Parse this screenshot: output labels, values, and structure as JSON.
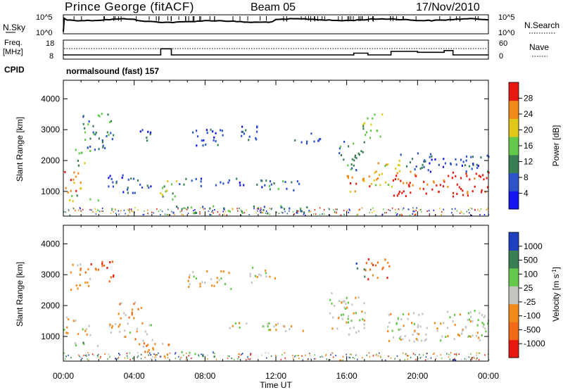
{
  "header": {
    "station": "Prince George (fitACF)",
    "beam": "Beam 05",
    "date": "17/Nov/2010"
  },
  "nsky_panel": {
    "left_label": "N.Sky",
    "right_label": "N.Search",
    "ticks_left": [
      "10^5",
      "10^0"
    ],
    "ticks_right": [
      "10^5",
      "10^0"
    ]
  },
  "freq_panel": {
    "left_label_1": "Freq.",
    "left_label_2": "[MHz]",
    "right_label": "Nave",
    "ticks_left": [
      "18",
      "8"
    ],
    "ticks_right": [
      "60",
      "0"
    ]
  },
  "cpid": {
    "label": "CPID",
    "value": "normalsound (fast) 157"
  },
  "x_axis": {
    "label": "Time UT",
    "ticks": [
      "00:00",
      "04:00",
      "08:00",
      "12:00",
      "16:00",
      "20:00",
      "00:00"
    ]
  },
  "colors": {
    "blue": "#1f3fbf",
    "darkgreen": "#3a7f54",
    "green": "#64c84a",
    "yellow": "#e0c81a",
    "orange": "#f08a18",
    "red": "#e81a10",
    "gray": "#c4c4c0"
  },
  "chart_data": [
    {
      "type": "line",
      "title": "",
      "series": [
        {
          "name": "N.Sky"
        },
        {
          "name": "N.Search"
        }
      ],
      "ylabel_left": "N.Sky",
      "ylabel_right": "N.Search",
      "note": "values near 10^5 throughout the day"
    },
    {
      "type": "line",
      "series": [
        {
          "name": "Freq.",
          "x_hours": [
            0,
            5.5,
            5.5,
            6.1,
            6.1,
            16.4,
            16.4,
            17.2,
            17.2,
            18.5,
            18.5,
            20.0,
            20.0,
            21.5,
            21.5,
            22.0,
            22.0,
            24
          ],
          "values": [
            10,
            10,
            13.5,
            13.5,
            10,
            10,
            11,
            11,
            10,
            10,
            12,
            12,
            11.5,
            11.5,
            12.5,
            12.5,
            10,
            10
          ]
        }
      ],
      "ylabel_left": "Freq. [MHz]",
      "ylabel_right": "Nave",
      "ylim_left": [
        8,
        18
      ],
      "ylim_right": [
        0,
        60
      ]
    },
    {
      "type": "heatmap",
      "quantity": "Power",
      "xlabel": "Time UT",
      "ylabel": "Slant Range [km]",
      "xlim_hours": [
        0,
        24
      ],
      "ylim_km": [
        200,
        4600
      ],
      "yticks": [
        1000,
        2000,
        3000,
        4000
      ],
      "colorbar": {
        "label": "Power [dB]",
        "ticks": [
          "4",
          "8",
          "12",
          "16",
          "20",
          "24",
          "28"
        ],
        "colors": [
          "#1414f0",
          "#2c54c8",
          "#3a7f54",
          "#64c84a",
          "#e0c81a",
          "#f08a18",
          "#e81a10"
        ]
      },
      "regions": [
        {
          "t0": 0.0,
          "t1": 1.2,
          "r0": 900,
          "r1": 1600,
          "level": 5
        },
        {
          "t0": 0.5,
          "t1": 1.5,
          "r0": 1800,
          "r1": 2400,
          "level": 3
        },
        {
          "t0": 1.0,
          "t1": 2.8,
          "r0": 2300,
          "r1": 3500,
          "level": 2
        },
        {
          "t0": 0.2,
          "t1": 2.0,
          "r0": 650,
          "r1": 850,
          "level": 3
        },
        {
          "t0": 2.5,
          "t1": 5.0,
          "r0": 900,
          "r1": 1500,
          "level": 1
        },
        {
          "t0": 4.2,
          "t1": 5.0,
          "r0": 2500,
          "r1": 3000,
          "level": 1
        },
        {
          "t0": 5.2,
          "t1": 6.5,
          "r0": 700,
          "r1": 1300,
          "level": 3
        },
        {
          "t0": 6.2,
          "t1": 7.8,
          "r0": 1100,
          "r1": 1400,
          "level": 1
        },
        {
          "t0": 7.0,
          "t1": 9.0,
          "r0": 2400,
          "r1": 3000,
          "level": 1
        },
        {
          "t0": 8.5,
          "t1": 11.5,
          "r0": 1100,
          "r1": 1400,
          "level": 1
        },
        {
          "t0": 10.0,
          "t1": 11.5,
          "r0": 2600,
          "r1": 3100,
          "level": 1
        },
        {
          "t0": 11.5,
          "t1": 13.5,
          "r0": 1000,
          "r1": 1400,
          "level": 2
        },
        {
          "t0": 13.0,
          "t1": 14.5,
          "r0": 2500,
          "r1": 2900,
          "level": 1
        },
        {
          "t0": 6.0,
          "t1": 14.0,
          "r0": 250,
          "r1": 500,
          "level": 2
        },
        {
          "t0": 15.5,
          "t1": 17.0,
          "r0": 1600,
          "r1": 2600,
          "level": 2
        },
        {
          "t0": 16.0,
          "t1": 17.5,
          "r0": 900,
          "r1": 1500,
          "level": 5
        },
        {
          "t0": 16.8,
          "t1": 18.0,
          "r0": 2700,
          "r1": 3500,
          "level": 3
        },
        {
          "t0": 17.5,
          "t1": 19.0,
          "r0": 1100,
          "r1": 2000,
          "level": 4
        },
        {
          "t0": 18.5,
          "t1": 24.0,
          "r0": 800,
          "r1": 1600,
          "level": 6
        },
        {
          "t0": 19.0,
          "t1": 24.0,
          "r0": 1600,
          "r1": 2200,
          "level": 1
        }
      ]
    },
    {
      "type": "heatmap",
      "quantity": "Velocity",
      "xlabel": "Time UT",
      "ylabel": "Slant Range [km]",
      "xlim_hours": [
        0,
        24
      ],
      "ylim_km": [
        200,
        4600
      ],
      "yticks": [
        1000,
        2000,
        3000,
        4000
      ],
      "colorbar": {
        "label": "Velocity [m s-1]",
        "ticks": [
          "1000",
          "500",
          "100",
          "25",
          "-25",
          "-100",
          "-500",
          "-1000"
        ],
        "colors": [
          "#1f3fbf",
          "#3a7f54",
          "#64c84a",
          "#c4c4c0",
          "#f08a18",
          "#f06a18",
          "#e81a10"
        ]
      },
      "regions": [
        {
          "t0": 0.0,
          "t1": 1.5,
          "r0": 1000,
          "r1": 1600,
          "level": 3
        },
        {
          "t0": 0.3,
          "t1": 1.5,
          "r0": 2400,
          "r1": 3300,
          "level": 4
        },
        {
          "t0": 1.5,
          "t1": 2.8,
          "r0": 2700,
          "r1": 3400,
          "level": 5
        },
        {
          "t0": 0.5,
          "t1": 2.0,
          "r0": 600,
          "r1": 800,
          "level": 2
        },
        {
          "t0": 3.0,
          "t1": 4.5,
          "r0": 1500,
          "r1": 2100,
          "level": 4
        },
        {
          "t0": 2.5,
          "t1": 5.0,
          "r0": 900,
          "r1": 1400,
          "level": 3
        },
        {
          "t0": 4.0,
          "t1": 6.0,
          "r0": 300,
          "r1": 900,
          "level": 4
        },
        {
          "t0": 6.5,
          "t1": 8.5,
          "r0": 300,
          "r1": 500,
          "level": 1
        },
        {
          "t0": 7.0,
          "t1": 9.5,
          "r0": 2500,
          "r1": 3100,
          "level": 3
        },
        {
          "t0": 9.0,
          "t1": 13.5,
          "r0": 1100,
          "r1": 1400,
          "level": 3
        },
        {
          "t0": 10.5,
          "t1": 12.0,
          "r0": 2700,
          "r1": 3200,
          "level": 3
        },
        {
          "t0": 15.0,
          "t1": 17.0,
          "r0": 1000,
          "r1": 2400,
          "level": 3
        },
        {
          "t0": 17.0,
          "t1": 18.5,
          "r0": 2800,
          "r1": 3500,
          "level": 5
        },
        {
          "t0": 16.5,
          "t1": 17.0,
          "r0": 2900,
          "r1": 3400,
          "level": 1
        },
        {
          "t0": 18.0,
          "t1": 24.0,
          "r0": 800,
          "r1": 1800,
          "level": 3
        }
      ]
    }
  ]
}
